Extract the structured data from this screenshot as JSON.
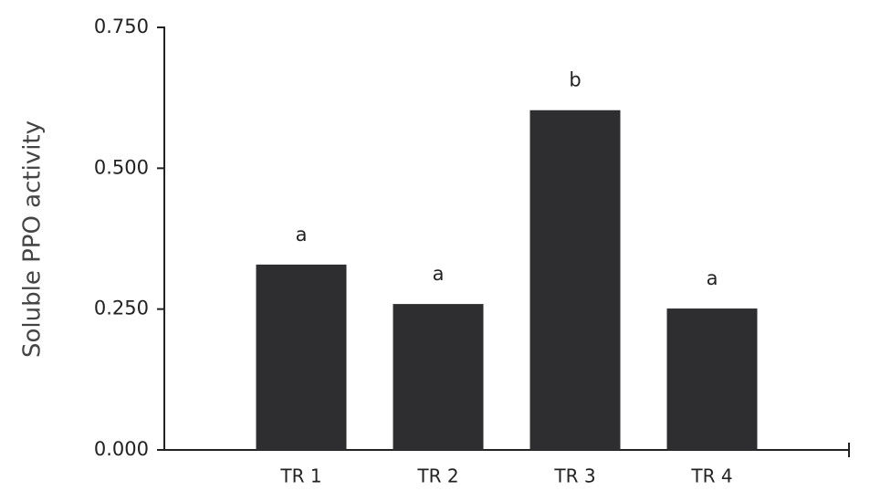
{
  "chart_data": {
    "type": "bar",
    "y_label": "Soluble PPO activity",
    "categories": [
      "TR 1",
      "TR 2",
      "TR 3",
      "TR 4"
    ],
    "values": [
      0.329,
      0.259,
      0.603,
      0.251
    ],
    "significance_labels": [
      "a",
      "a",
      "b",
      "a"
    ],
    "color": "#2e2e30",
    "ylim": [
      0,
      0.75
    ],
    "yticks": [
      {
        "value": 0,
        "label": "0.000"
      },
      {
        "value": 0.25,
        "label": "0.250"
      },
      {
        "value": 0.5,
        "label": "0.500"
      },
      {
        "value": 0.75,
        "label": "0.750"
      }
    ],
    "grid": false
  }
}
